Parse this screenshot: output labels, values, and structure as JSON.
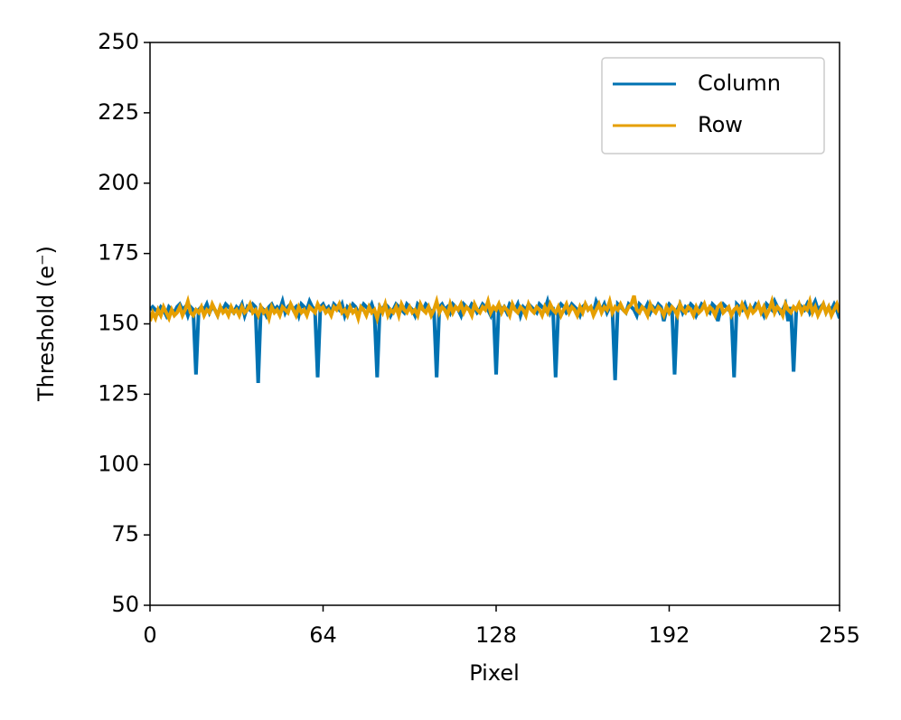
{
  "chart_data": {
    "type": "line",
    "x_label": "Pixel",
    "y_label": "Threshold (e⁻)",
    "xlim": [
      0,
      255
    ],
    "xticks": [
      0,
      64,
      128,
      192,
      255
    ],
    "ylim": [
      50,
      250
    ],
    "yticks": [
      50,
      75,
      100,
      125,
      150,
      175,
      200,
      225,
      250
    ],
    "legend": "upper right",
    "grid": false,
    "series": [
      {
        "name": "Column",
        "color": "#0072b2",
        "values": [
          155,
          156,
          155,
          154,
          156,
          155,
          153,
          156,
          155,
          154,
          156,
          157,
          155,
          156,
          153,
          156,
          155,
          132,
          155,
          156,
          155,
          157,
          154,
          156,
          155,
          153,
          156,
          155,
          157,
          156,
          155,
          154,
          156,
          155,
          157,
          153,
          156,
          155,
          157,
          156,
          129,
          156,
          155,
          153,
          156,
          157,
          155,
          156,
          155,
          158,
          154,
          156,
          157,
          155,
          156,
          153,
          157,
          156,
          155,
          158,
          156,
          155,
          131,
          156,
          157,
          155,
          156,
          154,
          157,
          156,
          155,
          157,
          153,
          156,
          155,
          157,
          156,
          154,
          155,
          157,
          156,
          155,
          157,
          154,
          131,
          156,
          155,
          157,
          156,
          153,
          155,
          157,
          156,
          155,
          154,
          157,
          156,
          155,
          153,
          157,
          156,
          155,
          157,
          156,
          154,
          155,
          131,
          156,
          157,
          155,
          156,
          154,
          157,
          156,
          155,
          153,
          157,
          156,
          155,
          157,
          156,
          154,
          155,
          157,
          156,
          155,
          153,
          156,
          132,
          157,
          155,
          156,
          154,
          157,
          156,
          155,
          157,
          153,
          156,
          155,
          157,
          156,
          155,
          154,
          157,
          156,
          155,
          158,
          154,
          156,
          131,
          155,
          157,
          156,
          154,
          155,
          157,
          156,
          155,
          153,
          156,
          157,
          155,
          156,
          154,
          158,
          156,
          155,
          157,
          154,
          156,
          155,
          130,
          157,
          156,
          155,
          154,
          157,
          156,
          155,
          153,
          157,
          156,
          155,
          157,
          154,
          156,
          155,
          157,
          156,
          151,
          155,
          157,
          156,
          132,
          155,
          157,
          154,
          156,
          155,
          157,
          156,
          153,
          155,
          157,
          156,
          155,
          154,
          157,
          156,
          151,
          155,
          157,
          156,
          155,
          154,
          131,
          157,
          156,
          155,
          157,
          154,
          156,
          155,
          157,
          156,
          155,
          153,
          157,
          156,
          155,
          158,
          156,
          154,
          155,
          157,
          151,
          156,
          133,
          155,
          157,
          156,
          155,
          157,
          154,
          156,
          158,
          155,
          156,
          157,
          154,
          156,
          155,
          157,
          155,
          152
        ]
      },
      {
        "name": "Row",
        "color": "#e69f00",
        "values": [
          151,
          154,
          152,
          155,
          153,
          156,
          154,
          152,
          155,
          153,
          154,
          156,
          153,
          155,
          158,
          154,
          153,
          155,
          154,
          156,
          153,
          155,
          154,
          157,
          155,
          153,
          156,
          154,
          155,
          153,
          156,
          154,
          155,
          153,
          156,
          154,
          155,
          157,
          154,
          155,
          153,
          156,
          154,
          155,
          152,
          156,
          154,
          155,
          153,
          156,
          155,
          154,
          157,
          155,
          153,
          156,
          154,
          155,
          153,
          156,
          155,
          154,
          157,
          155,
          156,
          154,
          155,
          153,
          156,
          155,
          157,
          154,
          155,
          153,
          156,
          154,
          155,
          152,
          156,
          155,
          153,
          156,
          154,
          155,
          152,
          156,
          154,
          157,
          153,
          155,
          154,
          156,
          153,
          157,
          155,
          154,
          156,
          154,
          155,
          153,
          157,
          155,
          154,
          156,
          153,
          155,
          158,
          154,
          156,
          155,
          153,
          157,
          154,
          156,
          155,
          157,
          154,
          156,
          155,
          153,
          157,
          155,
          154,
          156,
          155,
          158,
          154,
          156,
          155,
          157,
          154,
          156,
          155,
          153,
          157,
          155,
          154,
          156,
          155,
          153,
          157,
          155,
          154,
          156,
          155,
          153,
          156,
          154,
          157,
          155,
          154,
          156,
          153,
          155,
          157,
          154,
          156,
          155,
          153,
          156,
          154,
          157,
          155,
          156,
          153,
          155,
          157,
          154,
          156,
          155,
          158,
          154,
          156,
          155,
          157,
          155,
          154,
          156,
          157,
          160,
          155,
          154,
          156,
          155,
          153,
          157,
          155,
          154,
          156,
          155,
          153,
          156,
          154,
          156,
          155,
          153,
          157,
          155,
          154,
          156,
          155,
          153,
          156,
          154,
          155,
          157,
          154,
          156,
          155,
          153,
          156,
          157,
          154,
          155,
          156,
          153,
          155,
          156,
          154,
          157,
          155,
          153,
          156,
          154,
          155,
          157,
          154,
          156,
          153,
          155,
          158,
          154,
          156,
          155,
          153,
          157,
          155,
          154,
          156,
          155,
          157,
          154,
          156,
          155,
          158,
          154,
          156,
          153,
          155,
          157,
          154,
          156,
          153,
          155,
          157,
          154
        ]
      }
    ]
  }
}
